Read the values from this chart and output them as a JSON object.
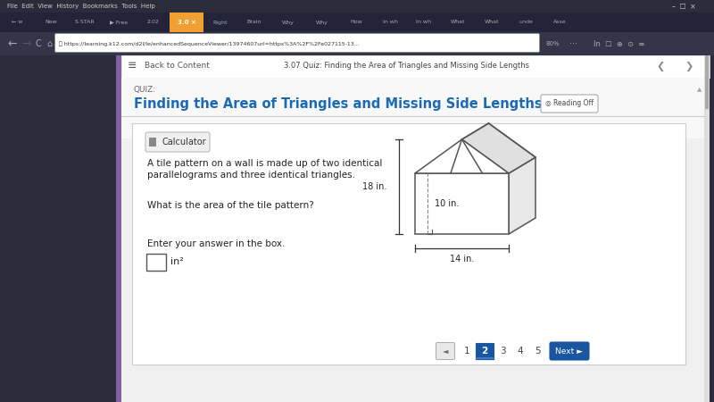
{
  "quiz_label": "QUIZ:",
  "quiz_title": "Finding the Area of Triangles and Missing Side Lengths",
  "quiz_title_color": "#1a6ab5",
  "reading_btn_text": "◎ Reading Off",
  "calculator_text": "Calculator",
  "question_line1": "A tile pattern on a wall is made up of two identical",
  "question_line2": "parallelograms and three identical triangles.",
  "sub_question": "What is the area of the tile pattern?",
  "answer_prompt": "Enter your answer in the box.",
  "answer_unit": "in²",
  "dim_18": "18 in.",
  "dim_10": "10 in.",
  "dim_14": "14 in.",
  "nav_pages": [
    "1",
    "2",
    "3",
    "4",
    "5"
  ],
  "current_page": 1,
  "nav_bar_title": "3.07 Quiz: Finding the Area of Triangles and Missing Side Lengths",
  "back_text": "Back to Content",
  "browser_bg": "#2b2b3c",
  "tab_active_color": "#f0a030",
  "tab_text": "3.0 X",
  "addr_text": "https://learning.k12.com/d2l/le/enhancedSequenceViewer/13974607url=https%3A%2F%2Fe027115-13...",
  "zoom_text": "80%",
  "page_bg": "#f0f0f0",
  "content_bg": "#ffffff",
  "purple_bar": "#8060a0",
  "nav_strip_bg": "#f8f8f8",
  "card_border": "#cccccc",
  "calc_bg": "#f0f0f0",
  "nav_active_bg": "#1a56a0",
  "next_btn_bg": "#1a56a0"
}
